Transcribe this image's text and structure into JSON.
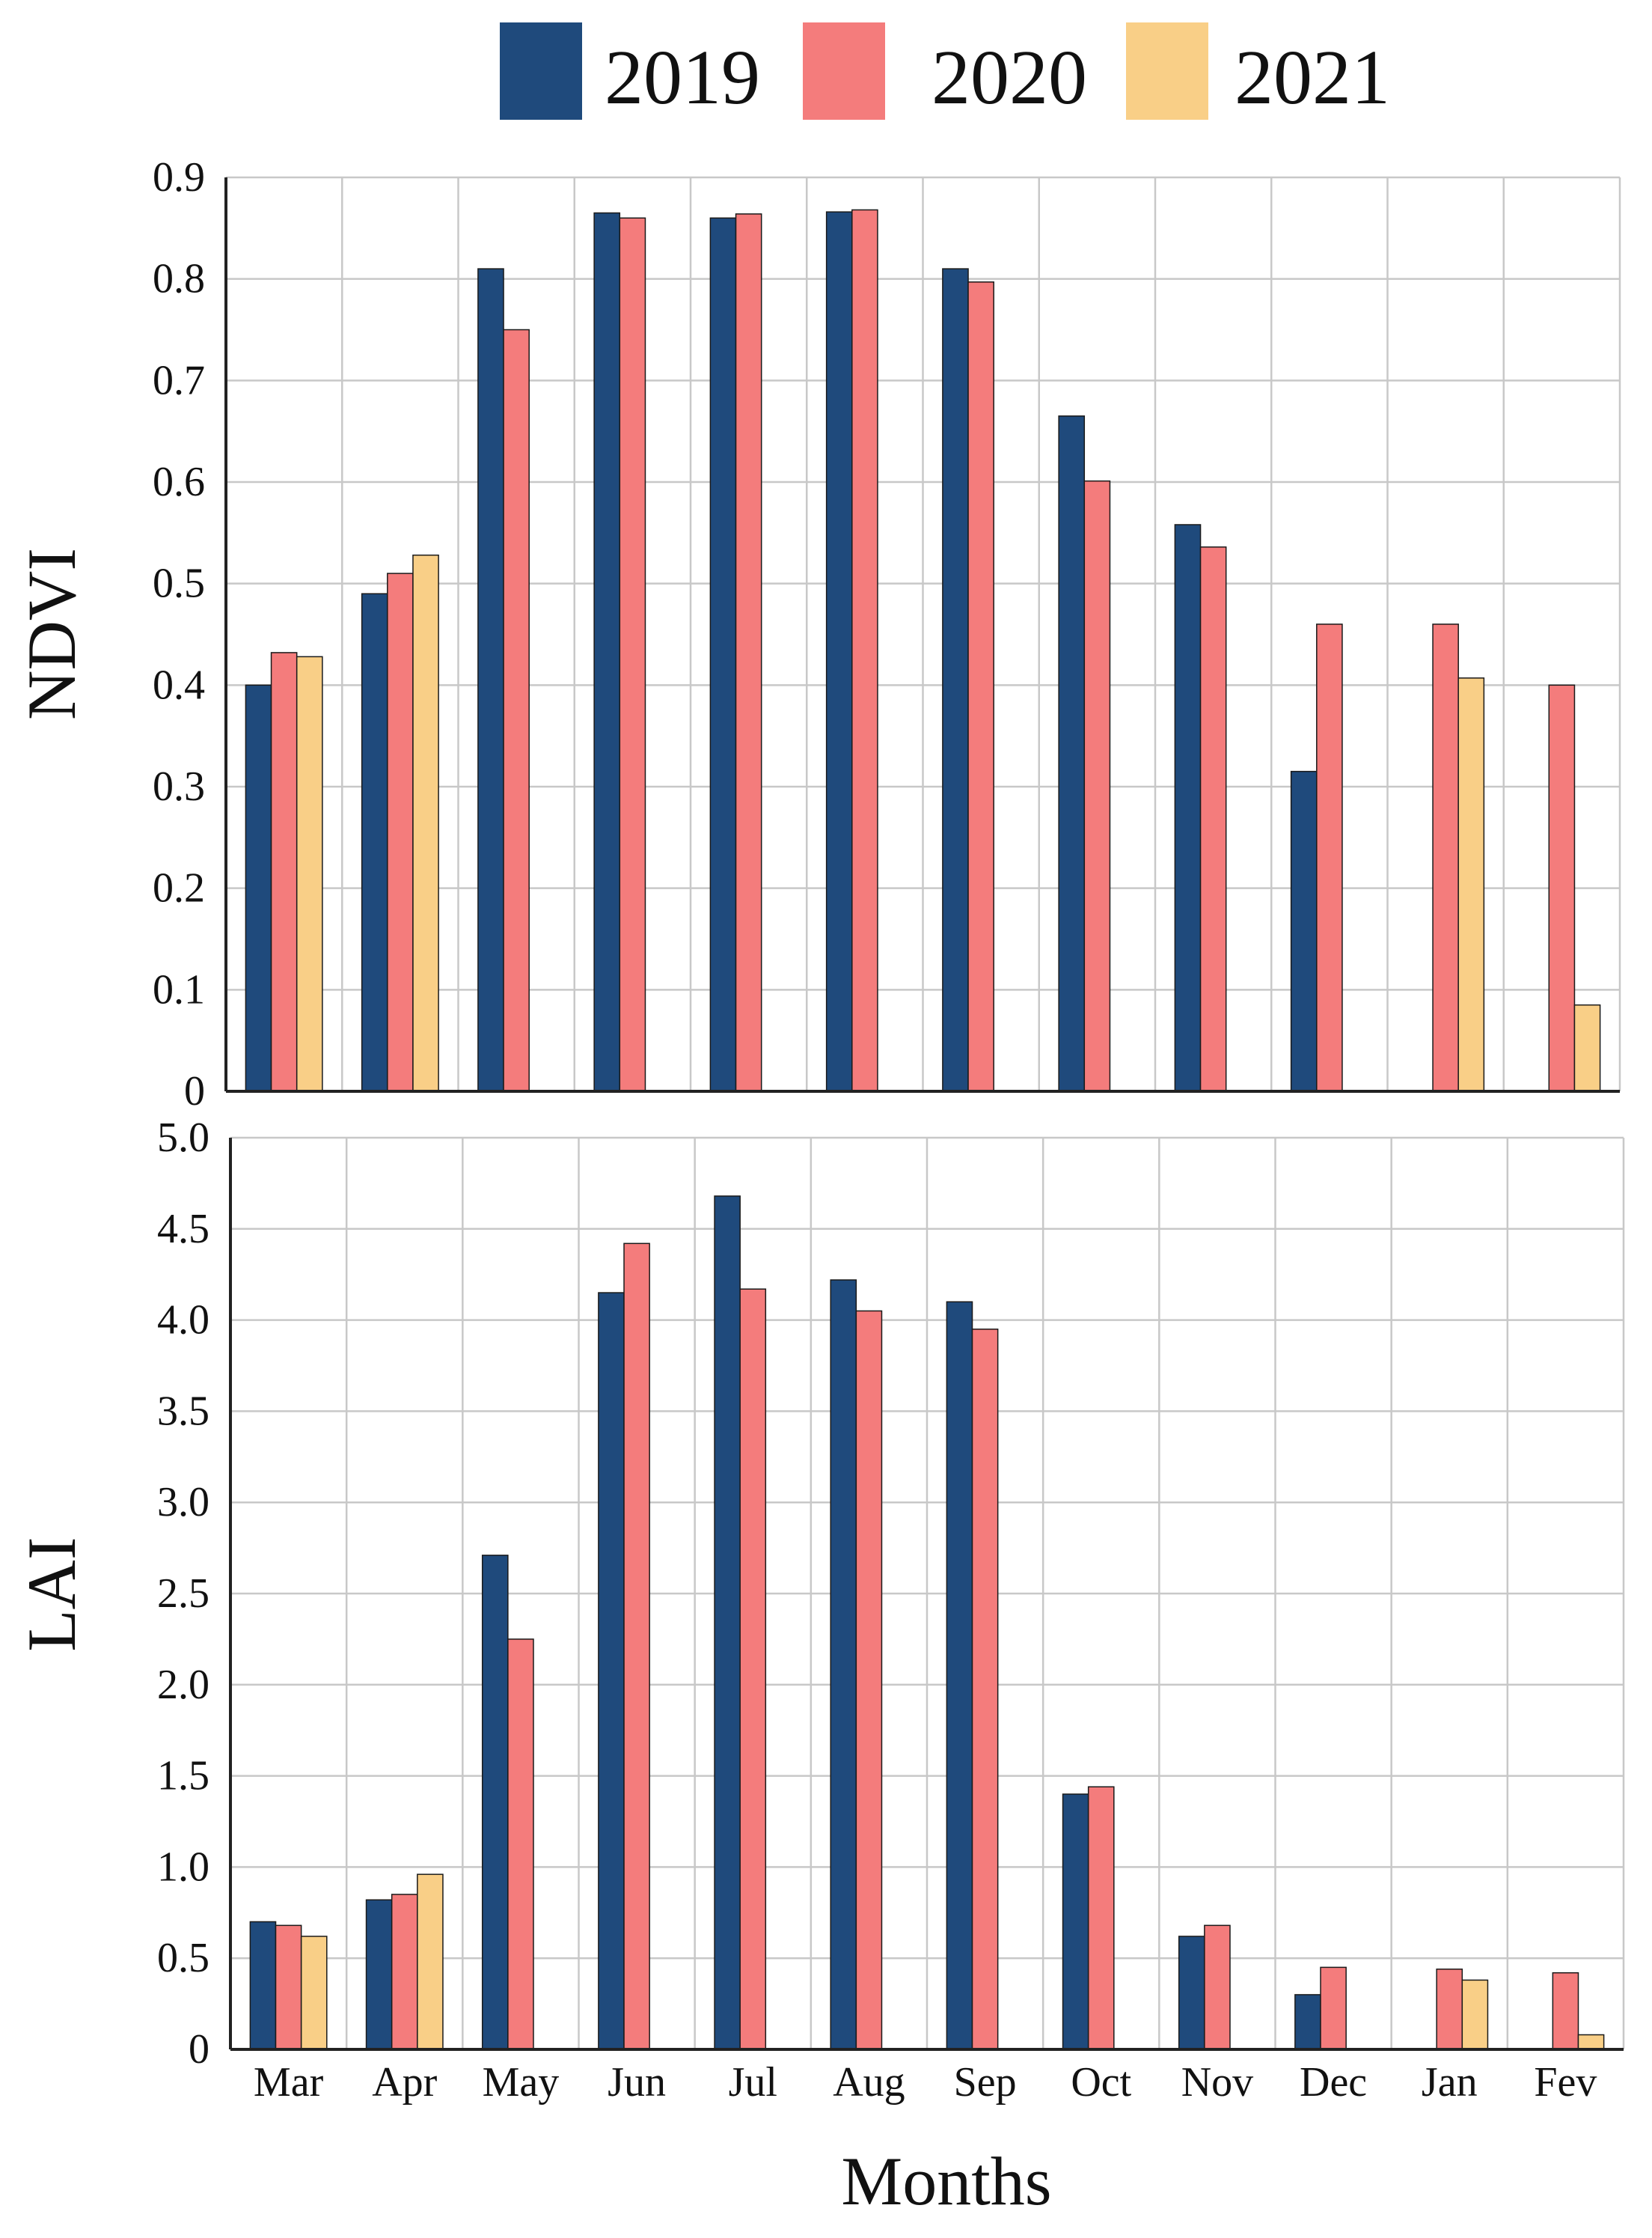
{
  "legend": {
    "series": [
      {
        "name": "2019",
        "color": "#1f4a7c"
      },
      {
        "name": "2020",
        "color": "#f47c7c"
      },
      {
        "name": "2021",
        "color": "#f9cf87"
      }
    ]
  },
  "xlabel": "Months",
  "chart_data": [
    {
      "type": "bar",
      "title": "",
      "ylabel": "NDVI",
      "xlabel": "",
      "ylim": [
        0,
        0.9
      ],
      "yticks": [
        0,
        0.1,
        0.2,
        0.3,
        0.4,
        0.5,
        0.6,
        0.7,
        0.8,
        0.9
      ],
      "ytick_labels": [
        "0",
        "0.1",
        "0.2",
        "0.3",
        "0.4",
        "0.5",
        "0.6",
        "0.7",
        "0.8",
        "0.9"
      ],
      "grid": true,
      "categories": [
        "Mar",
        "Apr",
        "May",
        "Jun",
        "Jul",
        "Aug",
        "Sep",
        "Oct",
        "Nov",
        "Dec",
        "Jan",
        "Fev"
      ],
      "series": [
        {
          "name": "2019",
          "values": [
            0.4,
            0.49,
            0.81,
            0.865,
            0.86,
            0.866,
            0.81,
            0.665,
            0.558,
            0.315,
            null,
            null
          ]
        },
        {
          "name": "2020",
          "values": [
            0.432,
            0.51,
            0.75,
            0.86,
            0.864,
            0.868,
            0.797,
            0.601,
            0.536,
            0.46,
            0.46,
            0.4
          ]
        },
        {
          "name": "2021",
          "values": [
            0.428,
            0.528,
            null,
            null,
            null,
            null,
            null,
            null,
            null,
            null,
            0.407,
            0.085
          ]
        }
      ]
    },
    {
      "type": "bar",
      "title": "",
      "ylabel": "LAI",
      "xlabel": "Months",
      "ylim": [
        0,
        5.0
      ],
      "yticks": [
        0,
        0.5,
        1.0,
        1.5,
        2.0,
        2.5,
        3.0,
        3.5,
        4.0,
        4.5,
        5.0
      ],
      "ytick_labels": [
        "0",
        "0.5",
        "1.0",
        "1.5",
        "2.0",
        "2.5",
        "3.0",
        "3.5",
        "4.0",
        "4.5",
        "5.0"
      ],
      "grid": true,
      "categories": [
        "Mar",
        "Apr",
        "May",
        "Jun",
        "Jul",
        "Aug",
        "Sep",
        "Oct",
        "Nov",
        "Dec",
        "Jan",
        "Fev"
      ],
      "series": [
        {
          "name": "2019",
          "values": [
            0.7,
            0.82,
            2.71,
            4.15,
            4.68,
            4.22,
            4.1,
            1.4,
            0.62,
            0.3,
            null,
            null
          ]
        },
        {
          "name": "2020",
          "values": [
            0.68,
            0.85,
            2.25,
            4.42,
            4.17,
            4.05,
            3.95,
            1.44,
            0.68,
            0.45,
            0.44,
            0.42
          ]
        },
        {
          "name": "2021",
          "values": [
            0.62,
            0.96,
            null,
            null,
            null,
            null,
            null,
            null,
            null,
            null,
            0.38,
            0.08
          ]
        }
      ]
    }
  ]
}
